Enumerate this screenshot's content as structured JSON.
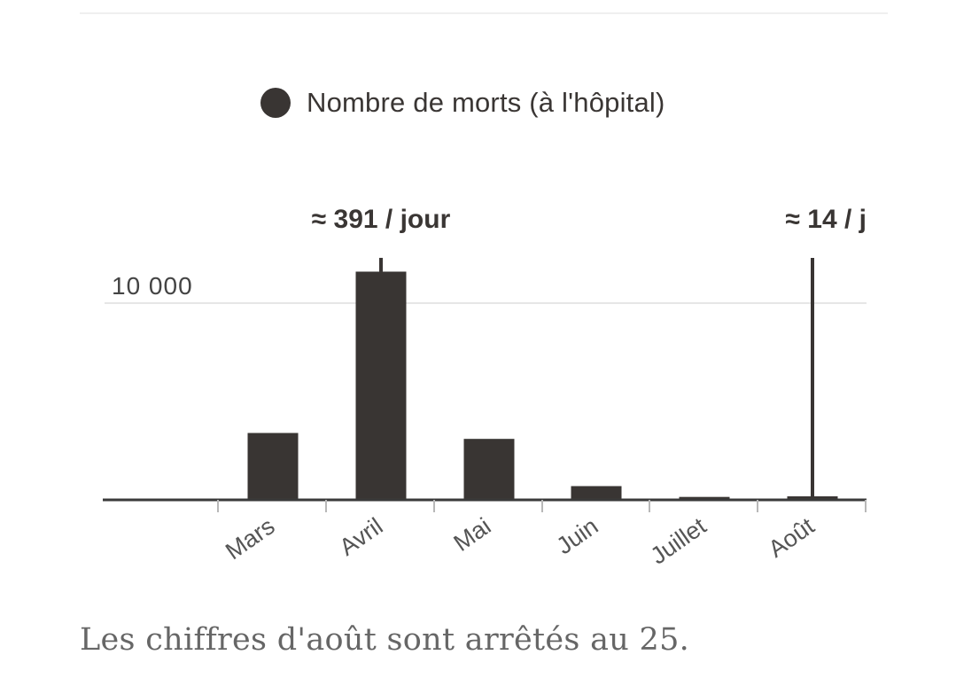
{
  "legend": {
    "label": "Nombre de morts (à l'hôpital)",
    "color": "#393533"
  },
  "chart_data": {
    "type": "bar",
    "categories": [
      "Mars",
      "Avril",
      "Mai",
      "Juin",
      "Juillet",
      "Août"
    ],
    "series": [
      {
        "name": "Nombre de morts (à l'hôpital)",
        "values": [
          3400,
          11600,
          3100,
          700,
          150,
          180
        ]
      }
    ],
    "ylim": [
      0,
      11800
    ],
    "yticks": [
      {
        "value": 10000,
        "label": "10 000"
      }
    ],
    "grid": true,
    "annotations": [
      {
        "category": "Avril",
        "label": "≈ 391 / jour",
        "marker_value": 12300
      },
      {
        "category": "Août",
        "label": "≈ 14 / j",
        "marker_value": 12300
      }
    ],
    "colors": {
      "bar": "#393533",
      "grid": "#e6e6e6",
      "axis": "#3a3a3a",
      "text": "#3a3634"
    }
  },
  "note": "Les chiffres d'août sont arrêtés au 25."
}
